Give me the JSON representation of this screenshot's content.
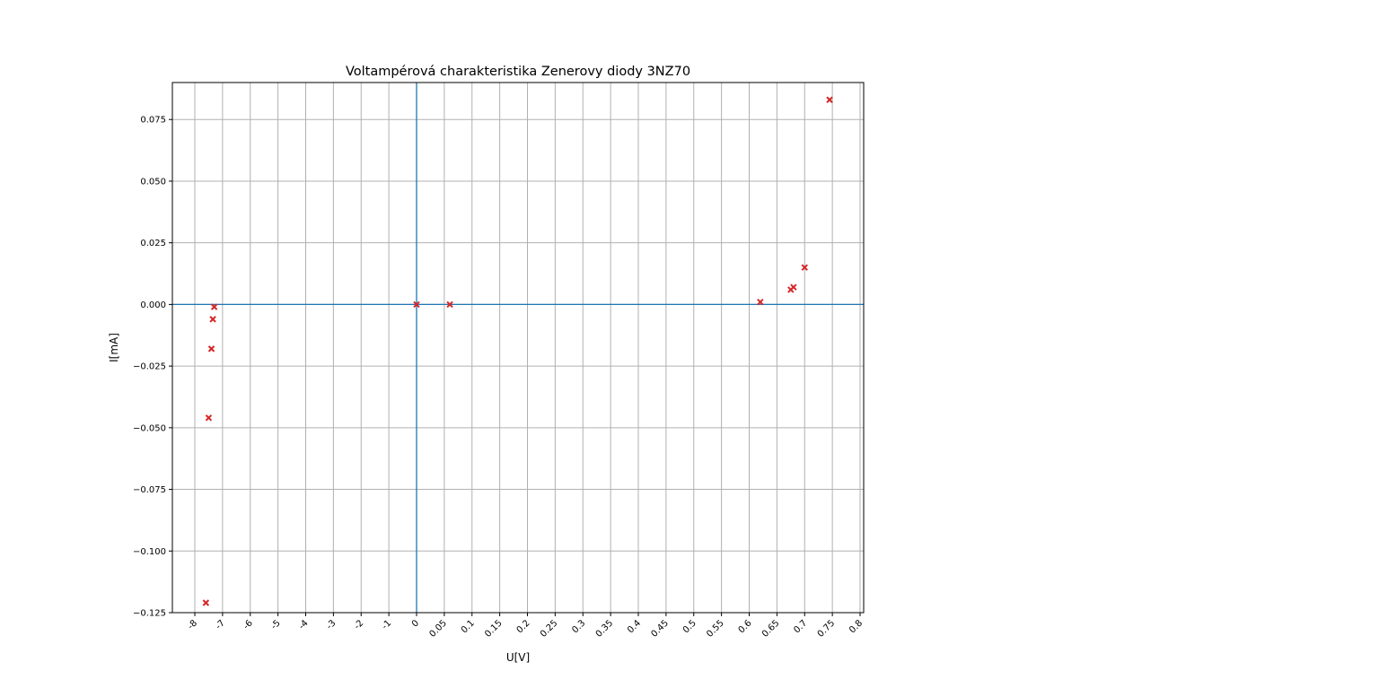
{
  "chart_data": {
    "type": "scatter",
    "title": "Voltampérová charakteristika Zenerovy diody 3NZ70",
    "xlabel": "U[V]",
    "ylabel": "I[mA]",
    "x_tick_labels": [
      "-8",
      "-7",
      "-6",
      "-5",
      "-4",
      "-3",
      "-2",
      "-1",
      "0",
      "0.05",
      "0.1",
      "0.15",
      "0.2",
      "0.25",
      "0.3",
      "0.35",
      "0.4",
      "0.45",
      "0.5",
      "0.55",
      "0.6",
      "0.65",
      "0.7",
      "0.75",
      "0.8"
    ],
    "y_ticks": [
      -0.125,
      -0.1,
      -0.075,
      -0.05,
      -0.025,
      0.0,
      0.025,
      0.05,
      0.075
    ],
    "y_tick_labels": [
      "−0.125",
      "−0.100",
      "−0.075",
      "−0.050",
      "−0.025",
      "0.000",
      "0.025",
      "0.050",
      "0.075"
    ],
    "ylim": [
      -0.125,
      0.09
    ],
    "grid": true,
    "marker": "x",
    "marker_color": "#d62728",
    "axis_line_color": "#1f77b4",
    "points": [
      {
        "x_label": "-7.6",
        "y": -0.121
      },
      {
        "x_label": "-7.5",
        "y": -0.046
      },
      {
        "x_label": "-7.4",
        "y": -0.018
      },
      {
        "x_label": "-7.35",
        "y": -0.006
      },
      {
        "x_label": "-7.3",
        "y": -0.001
      },
      {
        "x_label": "0",
        "y": 0.0
      },
      {
        "x_label": "0.06",
        "y": 0.0
      },
      {
        "x_label": "0.62",
        "y": 0.001
      },
      {
        "x_label": "0.675",
        "y": 0.006
      },
      {
        "x_label": "0.68",
        "y": 0.007
      },
      {
        "x_label": "0.7",
        "y": 0.015
      },
      {
        "x_label": "0.745",
        "y": 0.083
      }
    ]
  }
}
